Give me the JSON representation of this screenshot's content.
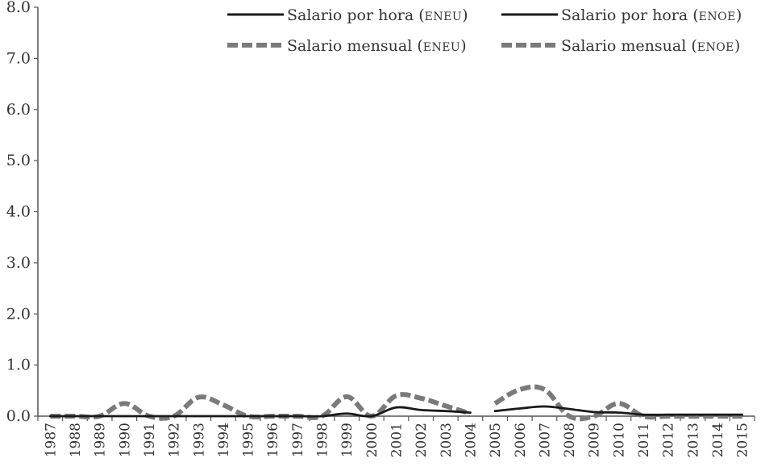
{
  "chart_data": {
    "type": "line",
    "title": "",
    "xlabel": "",
    "ylabel": "",
    "ylim": [
      0,
      8
    ],
    "y_ticks": [
      "0.0",
      "1.0",
      "2.0",
      "3.0",
      "4.0",
      "5.0",
      "6.0",
      "7.0",
      "8.0"
    ],
    "categories": [
      "1987",
      "1988",
      "1989",
      "1990",
      "1991",
      "1992",
      "1993",
      "1994",
      "1995",
      "1996",
      "1997",
      "1998",
      "1999",
      "2000",
      "2001",
      "2002",
      "2003",
      "2004",
      "2005",
      "2006",
      "2007",
      "2008",
      "2009",
      "2010",
      "2011",
      "2012",
      "2013",
      "2014",
      "2015"
    ],
    "grid": false,
    "legend_position": "top-right",
    "series": [
      {
        "name": "Salario por hora (ENEU)",
        "legend_main": "Salario por hora (",
        "legend_sc": "eneu",
        "legend_close": ")",
        "style": "solid",
        "color": "#1a1a1a",
        "values": [
          0.0,
          0.0,
          0.0,
          0.0,
          0.0,
          0.0,
          0.0,
          0.0,
          0.0,
          0.0,
          0.0,
          0.0,
          0.05,
          0.0,
          0.17,
          0.12,
          0.1,
          0.07,
          null,
          null,
          null,
          null,
          null,
          null,
          null,
          null,
          null,
          null,
          null
        ]
      },
      {
        "name": "Salario mensual (ENEU)",
        "legend_main": "Salario mensual (",
        "legend_sc": "eneu",
        "legend_close": ")",
        "style": "dashed",
        "color": "#7a7a7a",
        "values": [
          0.0,
          0.0,
          0.0,
          0.25,
          0.0,
          0.0,
          0.37,
          0.22,
          0.0,
          0.0,
          0.0,
          0.0,
          0.38,
          0.0,
          0.4,
          0.35,
          0.2,
          0.05,
          null,
          null,
          null,
          null,
          null,
          null,
          null,
          null,
          null,
          null,
          null
        ]
      },
      {
        "name": "Salario por hora (ENOE)",
        "legend_main": "Salario por hora (",
        "legend_sc": "enoe",
        "legend_close": ")",
        "style": "solid",
        "color": "#1a1a1a",
        "values": [
          null,
          null,
          null,
          null,
          null,
          null,
          null,
          null,
          null,
          null,
          null,
          null,
          null,
          null,
          null,
          null,
          null,
          null,
          0.1,
          0.15,
          0.19,
          0.14,
          0.08,
          0.07,
          0.03,
          0.03,
          0.03,
          0.03,
          0.03
        ]
      },
      {
        "name": "Salario mensual (ENOE)",
        "legend_main": "Salario mensual (",
        "legend_sc": "enoe",
        "legend_close": ")",
        "style": "dashed",
        "color": "#7a7a7a",
        "values": [
          null,
          null,
          null,
          null,
          null,
          null,
          null,
          null,
          null,
          null,
          null,
          null,
          null,
          null,
          null,
          null,
          null,
          null,
          0.25,
          0.52,
          0.52,
          0.0,
          0.0,
          0.25,
          0.0,
          0.0,
          0.0,
          0.0,
          0.0
        ]
      }
    ]
  }
}
